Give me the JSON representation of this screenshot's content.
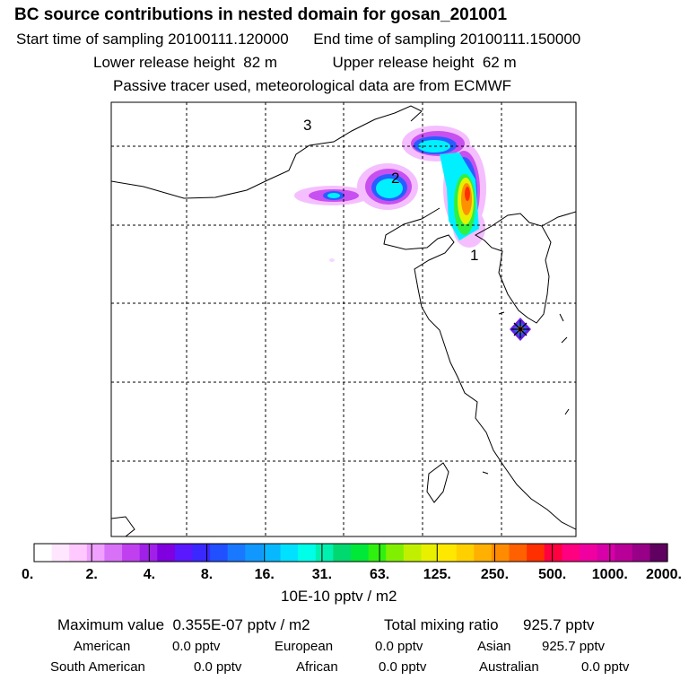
{
  "header": {
    "title": "BC  source contributions in nested domain for gosan_201001",
    "start_label": "Start time of sampling",
    "start_value": "20100111.120000",
    "end_label": "End time of sampling",
    "end_value": "20100111.150000",
    "lower_label": "Lower release height",
    "lower_value": "82 m",
    "upper_label": "Upper release height",
    "upper_value": "62 m",
    "note": "Passive tracer used, meteorological data are from ECMWF"
  },
  "map": {
    "markers": [
      "1",
      "2",
      "3"
    ],
    "receptor_icon": "star-receptor-icon",
    "gridline_style": "dashed"
  },
  "colorbar": {
    "tick_labels": [
      "0.",
      "2.",
      "4.",
      "8.",
      "16.",
      "31.",
      "63.",
      "125.",
      "250.",
      "500.",
      "1000.",
      "2000."
    ],
    "colors": [
      "#ffffff",
      "#ffe6ff",
      "#ffc8ff",
      "#f0a0ff",
      "#d870f8",
      "#c040f0",
      "#a020e8",
      "#8000e0",
      "#5a18ff",
      "#3a28ff",
      "#2050ff",
      "#1878ff",
      "#1098ff",
      "#08b8ff",
      "#00e0ff",
      "#00ffe8",
      "#00f0b0",
      "#00d870",
      "#00e838",
      "#30f010",
      "#80f000",
      "#c0f000",
      "#e8f000",
      "#ffe800",
      "#ffd000",
      "#ffb000",
      "#ff8c00",
      "#ff6000",
      "#ff3000",
      "#ff0040",
      "#ff0080",
      "#f000a0",
      "#d800a8",
      "#b80098",
      "#980088",
      "#600060"
    ],
    "unit": "10E-10 pptv / m2"
  },
  "summary": {
    "max_label": "Maximum value",
    "max_value": "0.355E-07 pptv / m2",
    "total_label": "Total mixing ratio",
    "total_value": "925.7 pptv",
    "regions": [
      {
        "name": "American",
        "value": "0.0 pptv"
      },
      {
        "name": "European",
        "value": "0.0 pptv"
      },
      {
        "name": "Asian",
        "value": "925.7 pptv"
      },
      {
        "name": "South American",
        "value": "0.0 pptv"
      },
      {
        "name": "African",
        "value": "0.0 pptv"
      },
      {
        "name": "Australian",
        "value": "0.0 pptv"
      }
    ]
  }
}
